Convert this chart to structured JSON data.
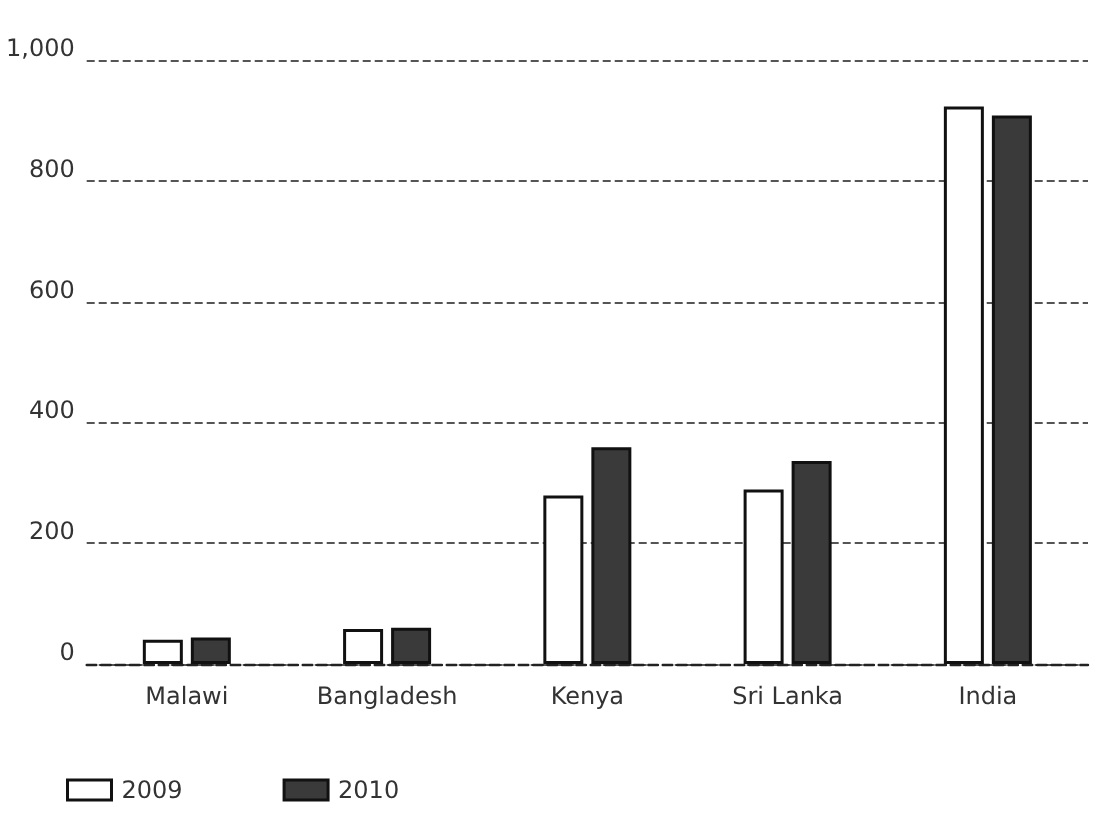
{
  "chart_data": {
    "type": "bar",
    "categories": [
      "Malawi",
      "Bangladesh",
      "Kenya",
      "Sri Lanka",
      "India"
    ],
    "series": [
      {
        "name": "2009",
        "color": "#ffffff",
        "values": [
          40,
          58,
          279,
          289,
          923
        ]
      },
      {
        "name": "2010",
        "color": "#3a3a3a",
        "values": [
          44,
          60,
          359,
          336,
          908
        ]
      }
    ],
    "ylim": [
      0,
      1000
    ],
    "yticks": [
      0,
      200,
      400,
      600,
      800,
      {
        "value": 1000,
        "label": "1,000"
      }
    ],
    "grid": "y",
    "legend": "bottom left"
  }
}
